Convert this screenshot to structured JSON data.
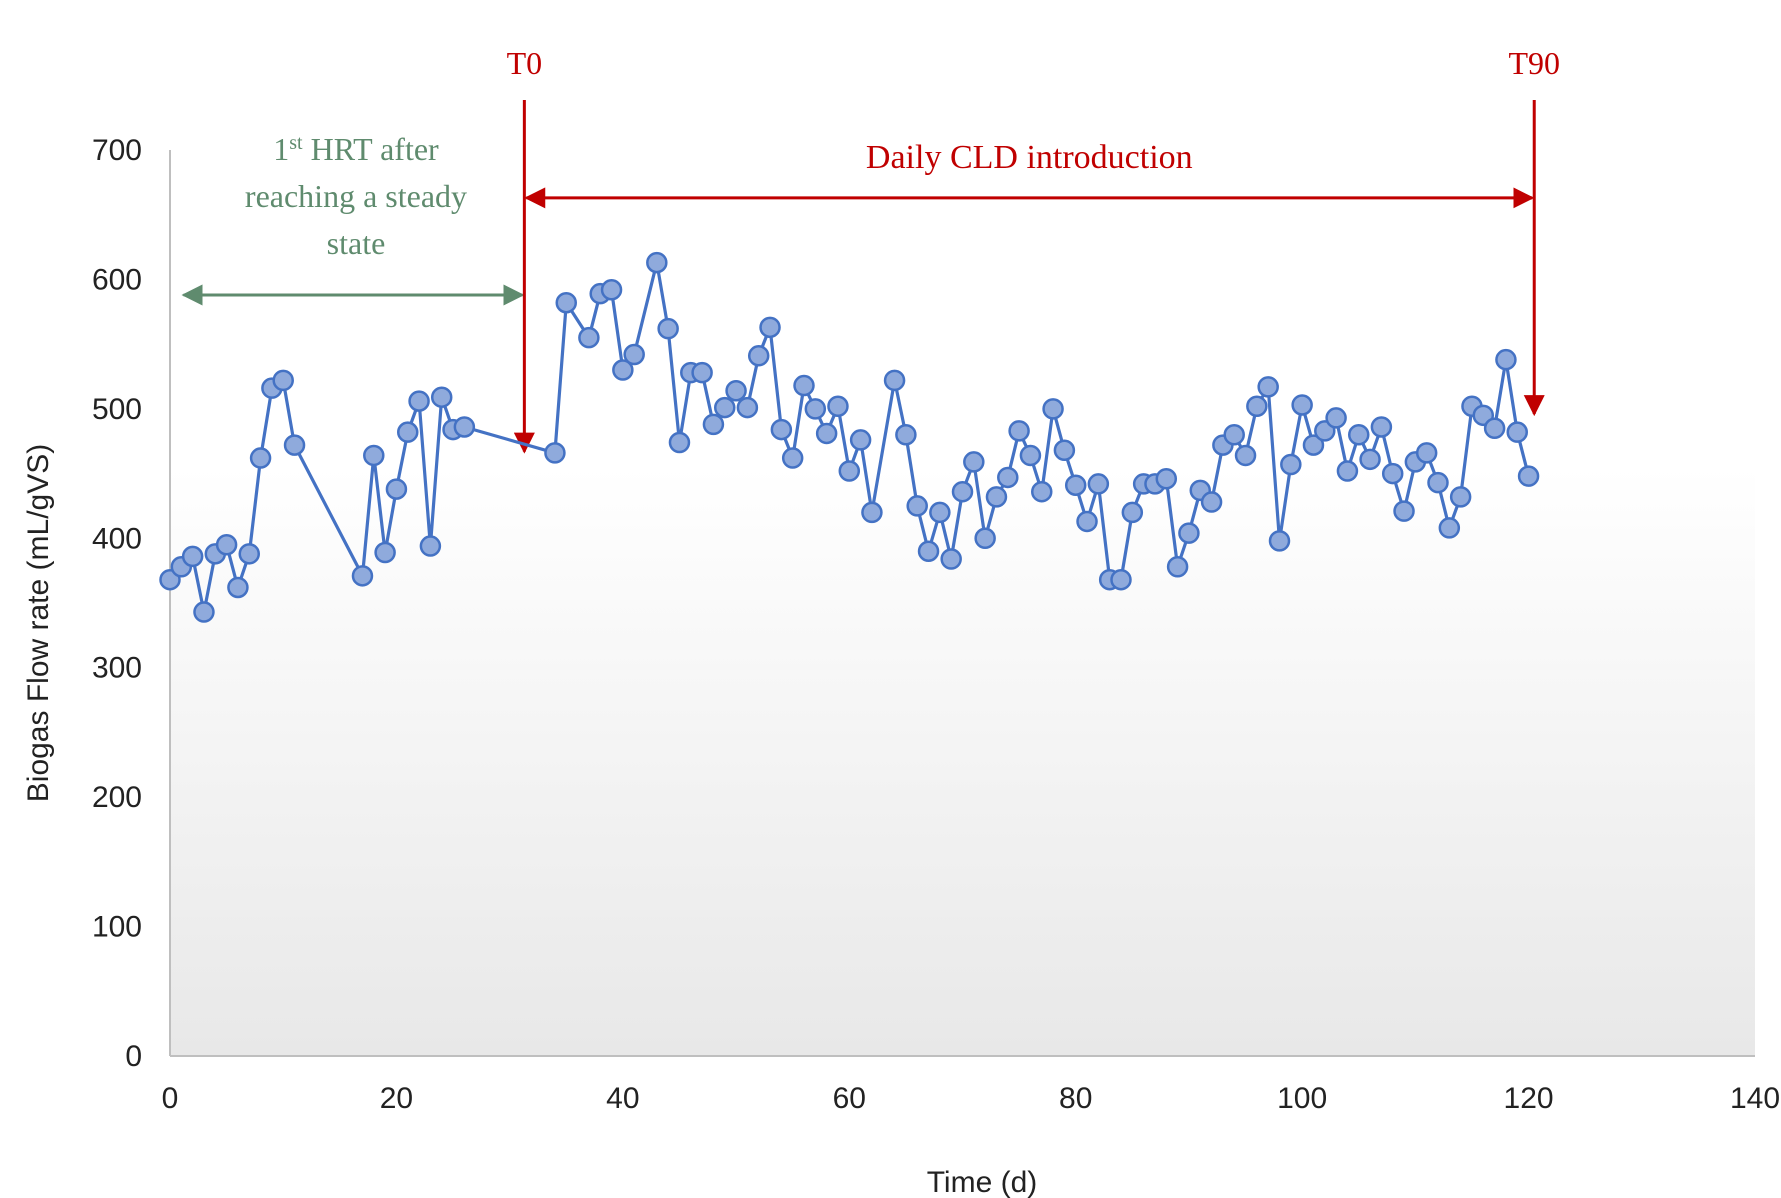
{
  "chart_data": {
    "type": "line",
    "title": "",
    "xlabel": "Time (d)",
    "ylabel": "Biogas Flow rate (mL/gVS)",
    "xlim": [
      0,
      140
    ],
    "ylim": [
      0,
      700
    ],
    "x_ticks": [
      0,
      20,
      40,
      60,
      80,
      100,
      120,
      140
    ],
    "y_ticks": [
      0,
      100,
      200,
      300,
      400,
      500,
      600,
      700
    ],
    "grid": false,
    "legend": "none",
    "colors": {
      "series": "#4472C4",
      "marker_fill": "#8FAADC",
      "steady_state": "#5F8B6E",
      "cld": "#C00000",
      "plot_gradient_top": "#FFFFFF",
      "plot_gradient_bottom": "#E8E8E8"
    },
    "series": [
      {
        "x": [
          0,
          1,
          2,
          3,
          4,
          5,
          6,
          7,
          8,
          9,
          10,
          11,
          17,
          18,
          19,
          20,
          21,
          22,
          23,
          24,
          25,
          26,
          34,
          35,
          37,
          38,
          39,
          40,
          41,
          43,
          44,
          45,
          46,
          47,
          48,
          49,
          50,
          51,
          52,
          53,
          54,
          55,
          56,
          57,
          58,
          59,
          60,
          61,
          62,
          64,
          65,
          66,
          67,
          68,
          69,
          70,
          71,
          72,
          73,
          74,
          75,
          76,
          77,
          78,
          79,
          80,
          81,
          82,
          83,
          84,
          85,
          86,
          87,
          88,
          89,
          90,
          91,
          92,
          93,
          94,
          95,
          96,
          97,
          98,
          99,
          100,
          101,
          102,
          103,
          104,
          105,
          106,
          107,
          108,
          109,
          110,
          111,
          112,
          113,
          114,
          115,
          116,
          117,
          118,
          119,
          120
        ],
        "values": [
          368,
          378,
          386,
          343,
          388,
          395,
          362,
          388,
          462,
          516,
          522,
          472,
          371,
          464,
          389,
          438,
          482,
          506,
          394,
          509,
          484,
          486,
          466,
          582,
          555,
          589,
          592,
          530,
          542,
          613,
          562,
          474,
          528,
          528,
          488,
          501,
          514,
          501,
          541,
          563,
          484,
          462,
          518,
          500,
          481,
          502,
          452,
          476,
          420,
          522,
          480,
          425,
          390,
          420,
          384,
          436,
          459,
          400,
          432,
          447,
          483,
          464,
          436,
          500,
          468,
          441,
          413,
          442,
          368,
          368,
          420,
          442,
          442,
          446,
          378,
          404,
          437,
          428,
          472,
          480,
          464,
          502,
          517,
          398,
          457,
          503,
          472,
          483,
          493,
          452,
          480,
          461,
          486,
          450,
          421,
          459,
          466,
          443,
          408,
          432,
          502,
          495,
          485,
          538,
          482,
          448
        ]
      }
    ],
    "annotations": {
      "t0_label": "T0",
      "t90_label": "T90",
      "t0_x": 31.3,
      "t90_x": 120.5,
      "steady_line1_pre": "1",
      "steady_line1_sup": "st",
      "steady_line1_post": " HRT after",
      "steady_line2": "reaching a steady",
      "steady_line3": "state",
      "steady_range": [
        1.2,
        31.3
      ],
      "steady_y": 588,
      "cld_text": "Daily CLD introduction",
      "cld_range": [
        31.3,
        120.5
      ],
      "cld_y": 663
    }
  }
}
